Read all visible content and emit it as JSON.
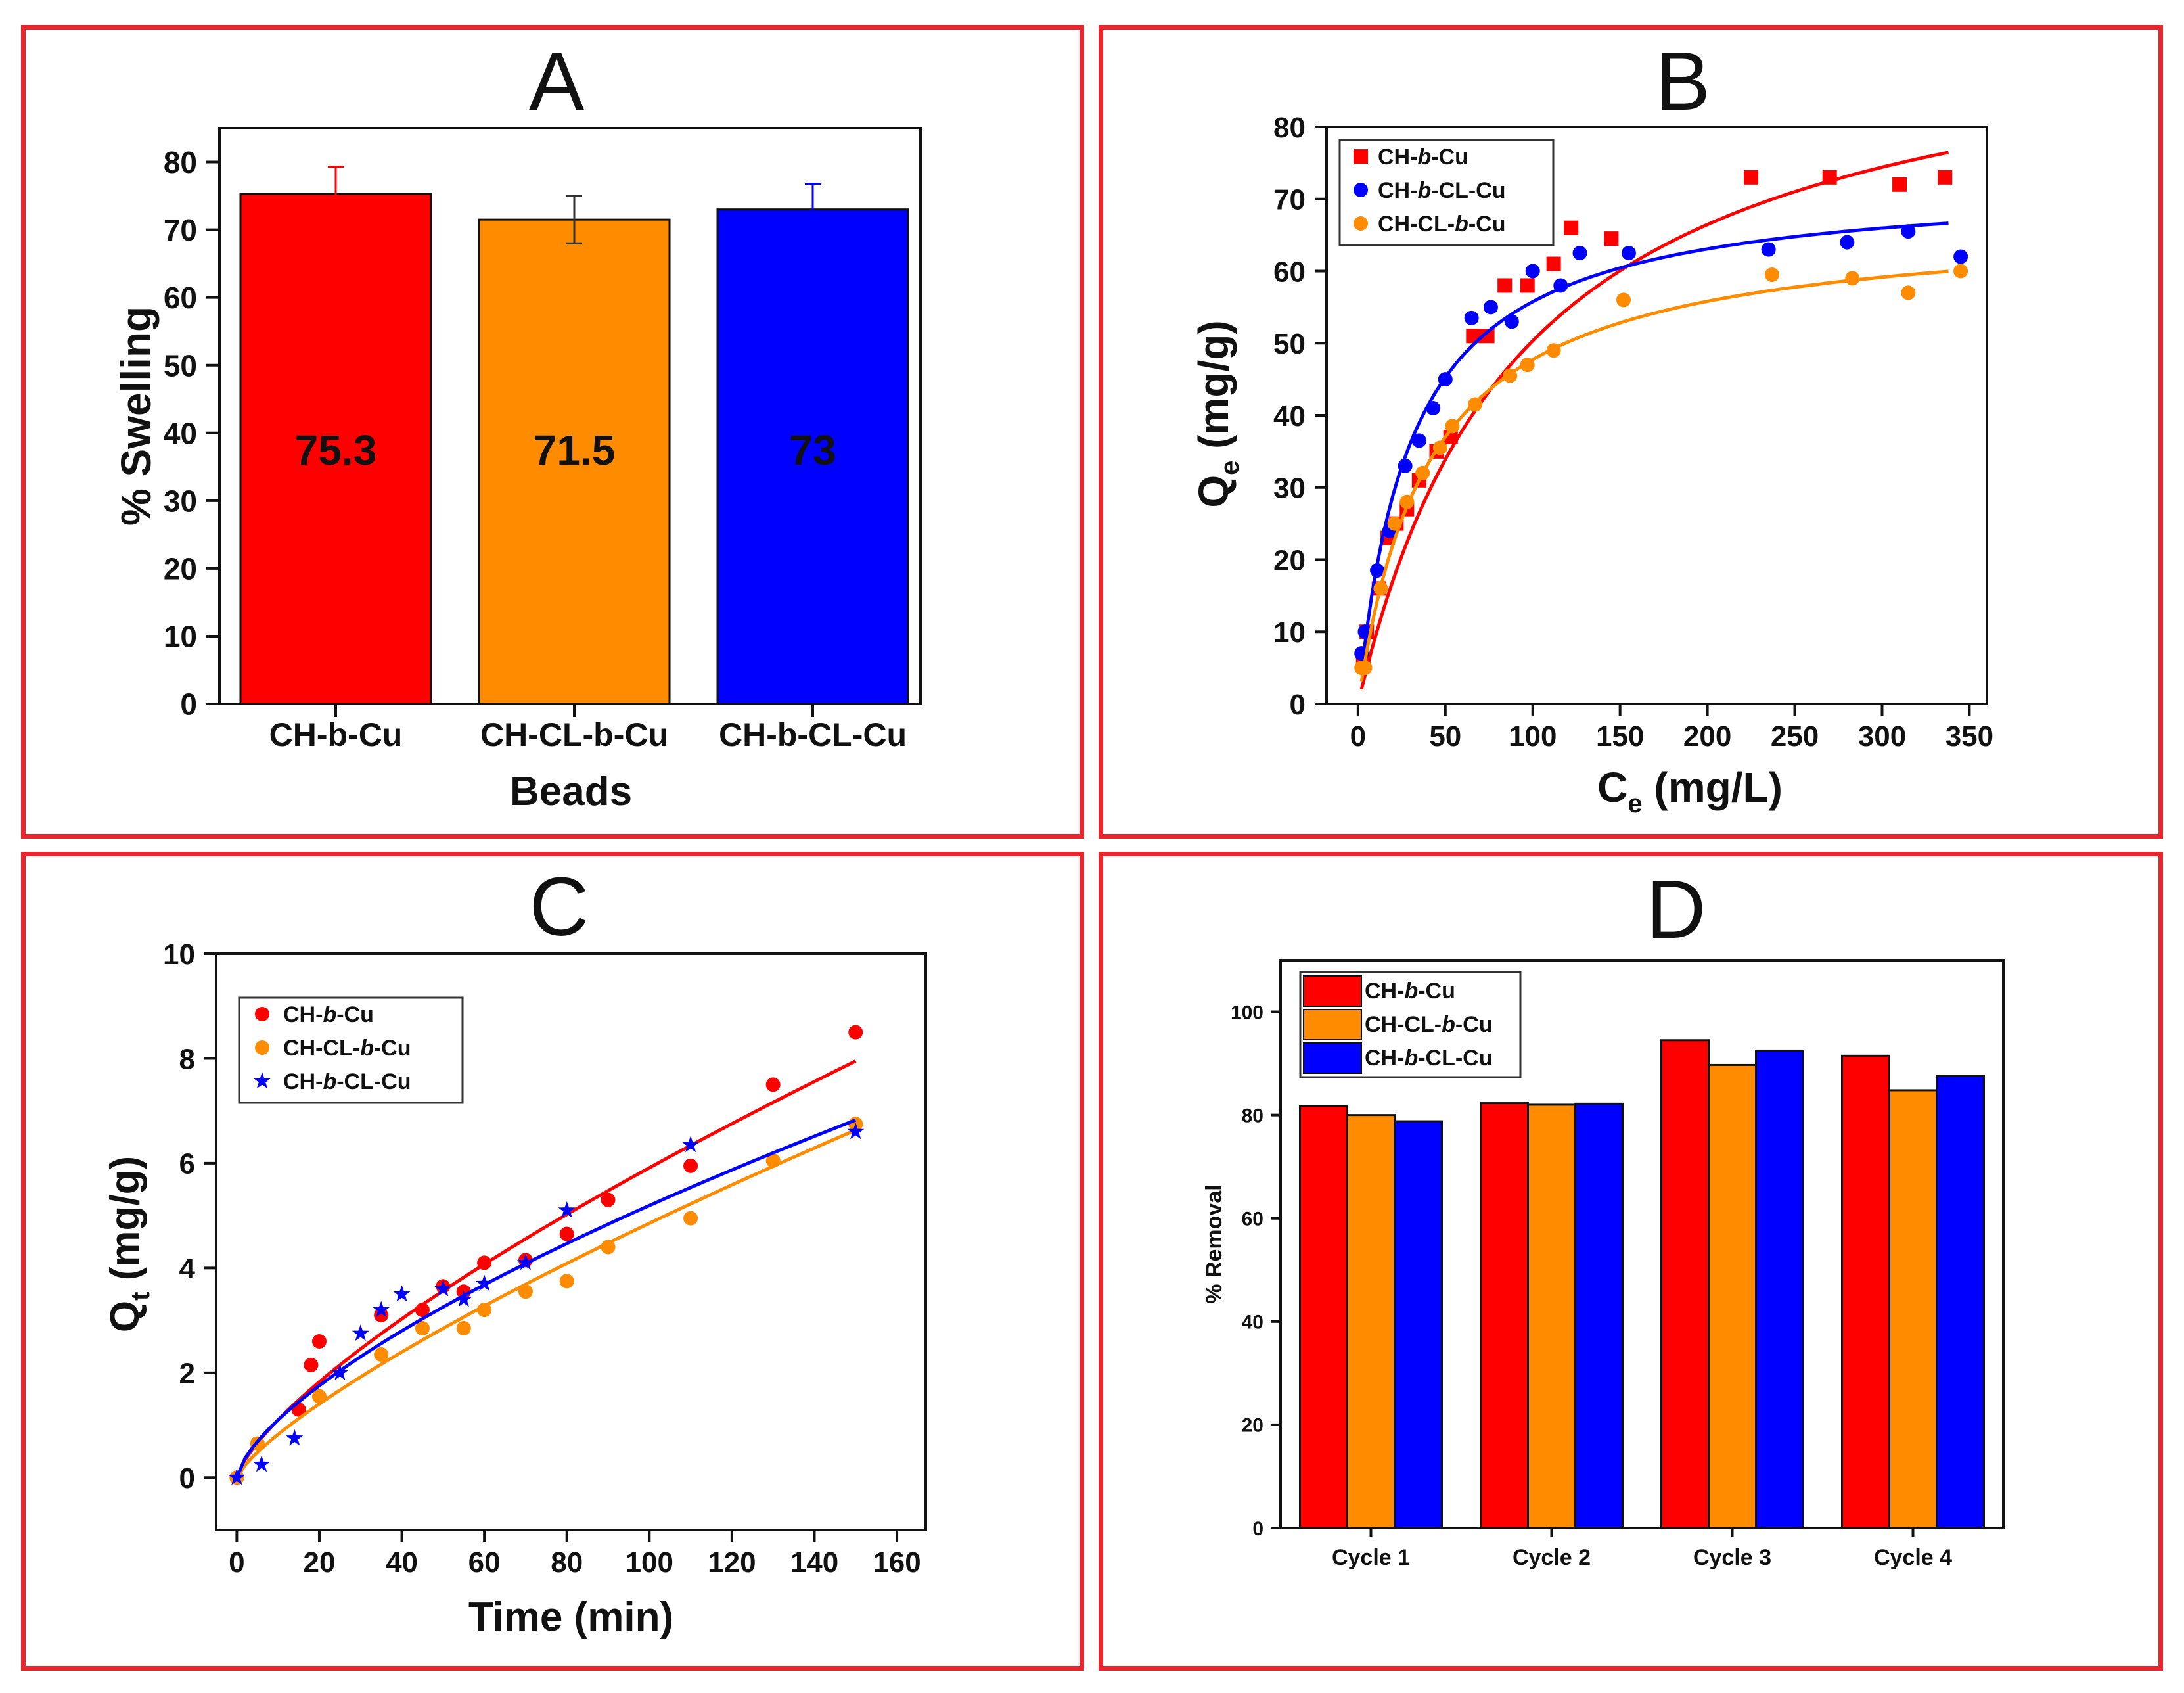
{
  "colors": {
    "red": "#ff0000",
    "orange": "#ff8c00",
    "blue": "#0000ff",
    "axis": "#111111",
    "frame": "#e8262d"
  },
  "chart_data": [
    {
      "panel": "A",
      "type": "bar",
      "title": "A",
      "xlabel": "Beads",
      "ylabel": "% Swelling",
      "categories": [
        "CH-b-Cu",
        "CH-CL-b-Cu",
        "CH-b-CL-Cu"
      ],
      "values": [
        75.3,
        71.5,
        73.0
      ],
      "errors": [
        4.0,
        3.5,
        3.8
      ],
      "data_labels": [
        "75.3",
        "71.5",
        "73"
      ],
      "label_colors": [
        "#3a3aff",
        "#111111",
        "#ff2020"
      ],
      "bar_colors": [
        "#ff0000",
        "#ff8c00",
        "#0000ff"
      ],
      "ylim": [
        0,
        85
      ],
      "yticks": [
        0,
        10,
        20,
        30,
        40,
        50,
        60,
        70,
        80
      ],
      "legend": null
    },
    {
      "panel": "B",
      "type": "scatter",
      "title": "B",
      "xlabel_main": "C",
      "xlabel_sub": "e",
      "xlabel_unit": " (mg/L)",
      "ylabel_main": "Q",
      "ylabel_sub": "e",
      "ylabel_unit": " (mg/g)",
      "xlim": [
        -18,
        360
      ],
      "ylim": [
        0,
        80
      ],
      "xticks": [
        0,
        50,
        100,
        150,
        200,
        250,
        300,
        350
      ],
      "yticks": [
        0,
        10,
        20,
        30,
        40,
        50,
        60,
        70,
        80
      ],
      "legend": "top-left",
      "series": [
        {
          "name": "CH-b-Cu",
          "name_a": "CH-",
          "name_i": "b",
          "name_b": "-Cu",
          "color": "#ff0000",
          "marker": "square",
          "x": [
            3,
            5,
            12,
            17,
            22,
            28,
            35,
            45,
            53,
            66,
            74,
            84,
            97,
            112,
            122,
            145,
            225,
            270,
            310,
            336
          ],
          "y": [
            6,
            10,
            16,
            23,
            25,
            27,
            31,
            35,
            37,
            51,
            51,
            58,
            58,
            61,
            66,
            64.5,
            73,
            73,
            72,
            73
          ],
          "fit": {
            "model": "langmuir",
            "qmax": 97.8,
            "KL": 0.0106
          }
        },
        {
          "name": "CH-b-CL-Cu",
          "name_a": "CH-",
          "name_i": "b",
          "name_b": "-CL-Cu",
          "color": "#0000ff",
          "marker": "circle",
          "x": [
            2,
            4,
            11,
            18,
            27,
            35,
            43,
            50,
            65,
            76,
            88,
            100,
            116,
            127,
            155,
            235,
            280,
            315,
            345
          ],
          "y": [
            7,
            10,
            18.5,
            24,
            33,
            36.5,
            41,
            45,
            53.5,
            55,
            53,
            60,
            58,
            62.5,
            62.5,
            63,
            64,
            65.5,
            62
          ],
          "fit": {
            "model": "langmuir",
            "qmax": 72.6,
            "KL": 0.0331
          }
        },
        {
          "name": "CH-CL-b-Cu",
          "name_a": "CH-CL-",
          "name_i": "b",
          "name_b": "-Cu",
          "color": "#ff8c00",
          "marker": "circle",
          "x": [
            2,
            4,
            13,
            21,
            28,
            37,
            47,
            54,
            67,
            87,
            97,
            112,
            152,
            237,
            283,
            315,
            345
          ],
          "y": [
            5,
            5,
            16,
            25,
            28,
            32,
            35.5,
            38.5,
            41.5,
            45.5,
            47,
            49,
            56,
            59.5,
            59,
            57,
            60
          ],
          "fit": {
            "model": "langmuir",
            "qmax": 67.2,
            "KL": 0.0245
          }
        }
      ]
    },
    {
      "panel": "C",
      "type": "scatter",
      "title": "C",
      "xlabel": "Time (min)",
      "ylabel_main": "Q",
      "ylabel_sub": "t",
      "ylabel_unit": " (mg/g)",
      "xlim": [
        -5,
        167
      ],
      "ylim": [
        -1,
        10
      ],
      "xticks": [
        0,
        20,
        40,
        60,
        80,
        100,
        120,
        140,
        160
      ],
      "yticks": [
        0,
        2,
        4,
        6,
        8,
        10
      ],
      "legend": "top-left",
      "series": [
        {
          "name": "CH-b-Cu",
          "name_a": "CH-",
          "name_i": "b",
          "name_b": "-Cu",
          "color": "#ff0000",
          "marker": "circle",
          "x": [
            0,
            15,
            18,
            20,
            35,
            45,
            50,
            55,
            60,
            70,
            80,
            90,
            110,
            130,
            150
          ],
          "y": [
            0,
            1.3,
            2.15,
            2.6,
            3.1,
            3.2,
            3.65,
            3.55,
            4.1,
            4.15,
            4.65,
            5.3,
            5.95,
            7.5,
            8.5
          ],
          "fit": {
            "model": "power",
            "a": 0.205,
            "n": 0.73
          }
        },
        {
          "name": "CH-CL-b-Cu",
          "name_a": "CH-CL-",
          "name_i": "b",
          "name_b": "-Cu",
          "color": "#ff8c00",
          "marker": "circle",
          "x": [
            0,
            5,
            20,
            35,
            45,
            55,
            60,
            70,
            80,
            90,
            110,
            130,
            150
          ],
          "y": [
            0,
            0.65,
            1.55,
            2.35,
            2.85,
            2.85,
            3.2,
            3.55,
            3.75,
            4.4,
            4.95,
            6.05,
            6.75
          ],
          "fit": {
            "model": "power",
            "a": 0.14,
            "n": 0.77
          }
        },
        {
          "name": "CH-b-CL-Cu",
          "name_a": "CH-",
          "name_i": "b",
          "name_b": "-CL-Cu",
          "color": "#0000ff",
          "marker": "star",
          "x": [
            0,
            6,
            14,
            25,
            30,
            35,
            40,
            50,
            55,
            60,
            70,
            80,
            110,
            150
          ],
          "y": [
            0,
            0.25,
            0.75,
            2.0,
            2.75,
            3.2,
            3.5,
            3.6,
            3.4,
            3.7,
            4.1,
            5.1,
            6.35,
            6.6
          ],
          "fit": {
            "model": "power",
            "a": 0.233,
            "n": 0.674
          }
        }
      ]
    },
    {
      "panel": "D",
      "type": "bar",
      "title": "D",
      "xlabel": "",
      "ylabel": "% Removal",
      "categories": [
        "Cycle 1",
        "Cycle 2",
        "Cycle 3",
        "Cycle 4"
      ],
      "ylim": [
        0,
        110
      ],
      "yticks": [
        0,
        20,
        40,
        60,
        80,
        100
      ],
      "legend": "top-left",
      "series": [
        {
          "name": "CH-b-Cu",
          "name_a": "CH-",
          "name_i": "b",
          "name_b": "-Cu",
          "color": "#ff0000",
          "values": [
            81.8,
            82.3,
            94.5,
            91.5
          ]
        },
        {
          "name": "CH-CL-b-Cu",
          "name_a": "CH-CL-",
          "name_i": "b",
          "name_b": "-Cu",
          "color": "#ff8c00",
          "values": [
            80.0,
            82.0,
            89.7,
            84.8
          ]
        },
        {
          "name": "CH-b-CL-Cu",
          "name_a": "CH-",
          "name_i": "b",
          "name_b": "-CL-Cu",
          "color": "#0000ff",
          "values": [
            78.8,
            82.2,
            92.5,
            87.6
          ]
        }
      ]
    }
  ]
}
